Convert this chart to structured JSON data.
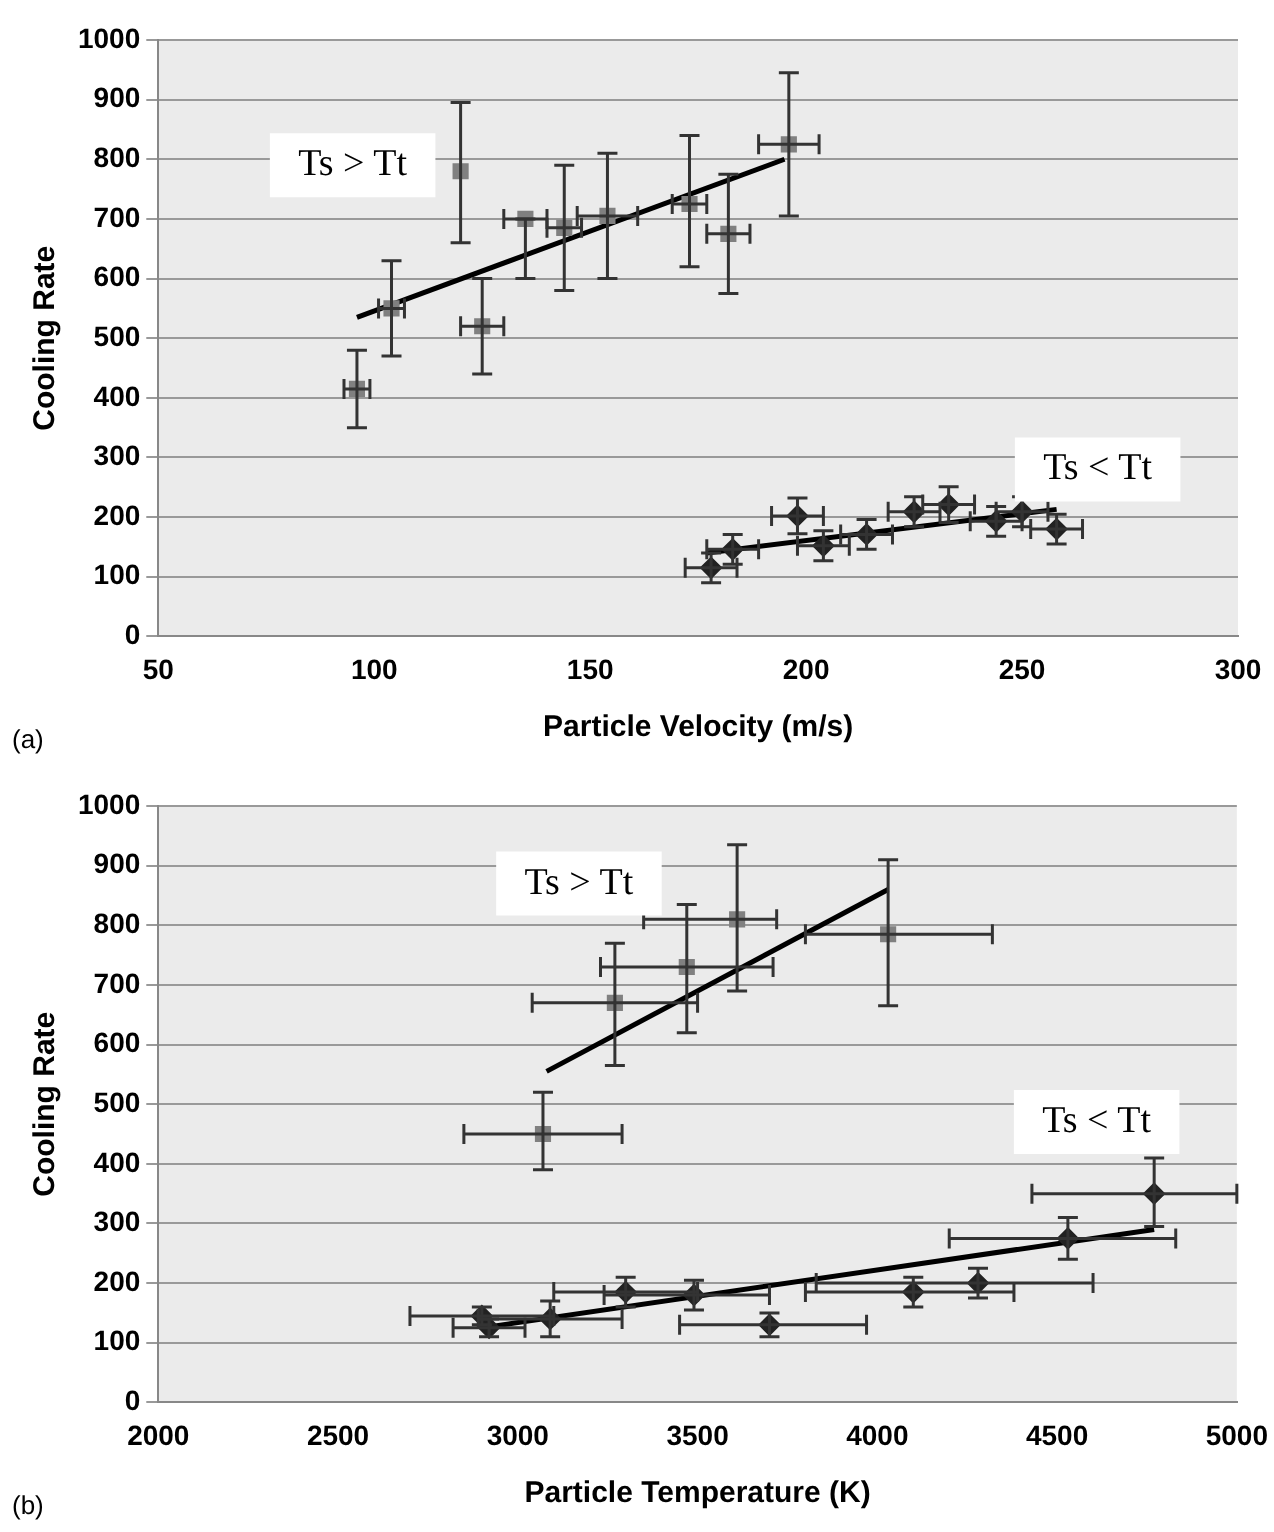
{
  "chart_data": [
    {
      "type": "scatter",
      "xlabel": "Particle Velocity (m/s)",
      "ylabel": "Cooling Rate",
      "xlim": [
        50,
        300
      ],
      "xticks": [
        50,
        100,
        150,
        200,
        250,
        300
      ],
      "ylim": [
        0,
        1000
      ],
      "yticks": [
        0,
        100,
        200,
        300,
        400,
        500,
        600,
        700,
        800,
        900,
        1000
      ],
      "grid": "y",
      "legend": false,
      "annotations": [
        "(a)",
        "Ts > Tt",
        "Ts < Tt"
      ],
      "series": [
        {
          "type": "scatter",
          "marker": "square",
          "color": "#808080",
          "x": [
            96,
            104,
            120,
            125,
            135,
            144,
            154,
            173,
            182,
            196
          ],
          "values": [
            415,
            550,
            780,
            520,
            700,
            685,
            705,
            725,
            675,
            825
          ],
          "errors": [
            [
              350,
              480
            ],
            [
              470,
              630
            ],
            [
              660,
              895
            ],
            [
              440,
              600
            ],
            [
              600,
              700
            ],
            [
              580,
              790
            ],
            [
              600,
              810
            ],
            [
              620,
              840
            ],
            [
              575,
              775
            ],
            [
              705,
              945
            ]
          ],
          "xerrors": [
            3,
            3,
            null,
            5,
            5,
            4,
            7,
            4,
            5,
            7
          ]
        },
        {
          "type": "scatter",
          "marker": "diamond",
          "color": "#222222",
          "x": [
            178,
            183,
            198,
            204,
            214,
            225,
            233,
            244,
            250,
            258
          ],
          "values": [
            115,
            146,
            202,
            152,
            171,
            209,
            221,
            193,
            209,
            180
          ],
          "errors": [
            25,
            25,
            30,
            25,
            25,
            25,
            30,
            25,
            25,
            25
          ],
          "xerrors": [
            6,
            6,
            6,
            6,
            6,
            6,
            6,
            6,
            6,
            6
          ]
        },
        {
          "type": "line",
          "marker": "none",
          "color": "#000000",
          "x": [
            96,
            195
          ],
          "values": [
            535,
            800
          ]
        },
        {
          "type": "line",
          "marker": "none",
          "color": "#000000",
          "x": [
            177,
            258
          ],
          "values": [
            140,
            213
          ]
        }
      ]
    },
    {
      "type": "scatter",
      "xlabel": "Particle Temperature (K)",
      "ylabel": "Cooling Rate",
      "xlim": [
        2000,
        5000
      ],
      "xticks": [
        2000,
        2500,
        3000,
        3500,
        4000,
        4500,
        5000
      ],
      "ylim": [
        0,
        1000
      ],
      "yticks": [
        0,
        100,
        200,
        300,
        400,
        500,
        600,
        700,
        800,
        900,
        1000
      ],
      "grid": "y",
      "legend": false,
      "annotations": [
        "(b)",
        "Ts > Tt",
        "Ts < Tt"
      ],
      "series": [
        {
          "type": "scatter",
          "marker": "square",
          "color": "#808080",
          "x": [
            3070,
            3270,
            3470,
            3610,
            4030
          ],
          "values": [
            450,
            670,
            730,
            810,
            785
          ],
          "errors": [
            [
              390,
              520
            ],
            [
              565,
              770
            ],
            [
              620,
              835
            ],
            [
              690,
              935
            ],
            [
              665,
              910
            ]
          ],
          "xerrors": [
            220,
            230,
            240,
            [
              3350,
              3720
            ],
            [
              3800,
              4320
            ]
          ]
        },
        {
          "type": "scatter",
          "marker": "diamond",
          "color": "#222222",
          "x": [
            2900,
            2920,
            3090,
            3300,
            3490,
            3700,
            4100,
            4280,
            4530,
            4770
          ],
          "values": [
            145,
            125,
            140,
            185,
            180,
            130,
            185,
            200,
            275,
            350
          ],
          "errors": [
            15,
            15,
            30,
            25,
            25,
            20,
            25,
            25,
            35,
            [
              295,
              410
            ]
          ],
          "xerrors": [
            [
              2700,
              3100
            ],
            100,
            200,
            200,
            [
              3240,
              3700
            ],
            [
              3450,
              3970
            ],
            [
              3800,
              4380
            ],
            [
              3830,
              4600
            ],
            [
              4200,
              4830
            ],
            [
              4430,
              5000
            ]
          ]
        },
        {
          "type": "line",
          "marker": "none",
          "color": "#000000",
          "x": [
            3080,
            4030
          ],
          "values": [
            555,
            860
          ]
        },
        {
          "type": "line",
          "marker": "none",
          "color": "#000000",
          "x": [
            2900,
            4770
          ],
          "values": [
            125,
            290
          ]
        }
      ]
    }
  ]
}
